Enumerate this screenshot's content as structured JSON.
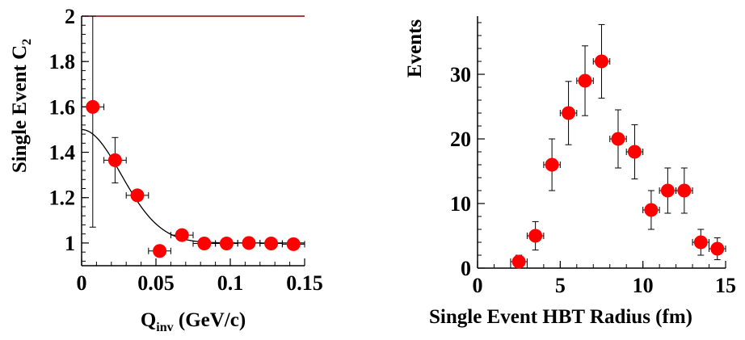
{
  "chart_data": [
    {
      "type": "scatter",
      "title": "",
      "xlabel": "Q",
      "xlabel_sub": "inv",
      "xlabel_unit": " (GeV/c)",
      "ylabel": "Single Event C",
      "ylabel_sub": "2",
      "xlim": [
        0,
        0.15
      ],
      "ylim": [
        0.9,
        2.0
      ],
      "xticks": [
        0,
        0.05,
        0.1,
        0.15
      ],
      "xtick_labels": [
        "0",
        "0.05",
        "0.1",
        "0.15"
      ],
      "yticks": [
        1,
        1.2,
        1.4,
        1.6,
        1.8,
        2
      ],
      "ytick_labels": [
        "1",
        "1.2",
        "1.4",
        "1.6",
        "1.8",
        "2"
      ],
      "grid": false,
      "legend": "none",
      "marker_color": "#ff0000",
      "points": [
        {
          "x": 0.0075,
          "y": 1.6,
          "xerr": 0.0075,
          "yerr_lo": 0.53,
          "yerr_hi": 0.42
        },
        {
          "x": 0.0225,
          "y": 1.365,
          "xerr": 0.0075,
          "yerr_lo": 0.1,
          "yerr_hi": 0.1
        },
        {
          "x": 0.0375,
          "y": 1.21,
          "xerr": 0.0075,
          "yerr_lo": 0.02,
          "yerr_hi": 0.02
        },
        {
          "x": 0.0525,
          "y": 0.965,
          "xerr": 0.0075,
          "yerr_lo": 0.025,
          "yerr_hi": 0.025
        },
        {
          "x": 0.0675,
          "y": 1.035,
          "xerr": 0.0075,
          "yerr_lo": 0.01,
          "yerr_hi": 0.01
        },
        {
          "x": 0.0825,
          "y": 0.998,
          "xerr": 0.0075,
          "yerr_lo": 0.01,
          "yerr_hi": 0.01
        },
        {
          "x": 0.0975,
          "y": 0.998,
          "xerr": 0.0075,
          "yerr_lo": 0.01,
          "yerr_hi": 0.01
        },
        {
          "x": 0.1125,
          "y": 1.0,
          "xerr": 0.0075,
          "yerr_lo": 0.01,
          "yerr_hi": 0.01
        },
        {
          "x": 0.1275,
          "y": 0.998,
          "xerr": 0.0075,
          "yerr_lo": 0.01,
          "yerr_hi": 0.01
        },
        {
          "x": 0.1425,
          "y": 0.995,
          "xerr": 0.0075,
          "yerr_lo": 0.01,
          "yerr_hi": 0.01
        }
      ],
      "fit_curve": {
        "type": "gaussian",
        "baseline": 1.0,
        "amplitude": 0.5,
        "sigma": 0.0265,
        "color": "#000000"
      }
    },
    {
      "type": "scatter",
      "title": "",
      "xlabel": "Single Event HBT Radius (fm)",
      "ylabel": "Events",
      "xlim": [
        0,
        15
      ],
      "ylim": [
        0,
        39
      ],
      "xticks": [
        0,
        5,
        10,
        15
      ],
      "xtick_labels": [
        "0",
        "5",
        "10",
        "15"
      ],
      "yticks": [
        0,
        10,
        20,
        30
      ],
      "ytick_labels": [
        "0",
        "10",
        "20",
        "30"
      ],
      "grid": false,
      "legend": "none",
      "marker_color": "#ff0000",
      "points": [
        {
          "x": 2.5,
          "y": 1,
          "xerr": 0.5,
          "yerr_lo": 1.0,
          "yerr_hi": 1.0
        },
        {
          "x": 3.5,
          "y": 5,
          "xerr": 0.5,
          "yerr_lo": 2.2,
          "yerr_hi": 2.2
        },
        {
          "x": 4.5,
          "y": 16,
          "xerr": 0.5,
          "yerr_lo": 4.0,
          "yerr_hi": 4.0
        },
        {
          "x": 5.5,
          "y": 24,
          "xerr": 0.5,
          "yerr_lo": 4.9,
          "yerr_hi": 4.9
        },
        {
          "x": 6.5,
          "y": 29,
          "xerr": 0.5,
          "yerr_lo": 5.4,
          "yerr_hi": 5.4
        },
        {
          "x": 7.5,
          "y": 32,
          "xerr": 0.5,
          "yerr_lo": 5.7,
          "yerr_hi": 5.7
        },
        {
          "x": 8.5,
          "y": 20,
          "xerr": 0.5,
          "yerr_lo": 4.5,
          "yerr_hi": 4.5
        },
        {
          "x": 9.5,
          "y": 18,
          "xerr": 0.5,
          "yerr_lo": 4.2,
          "yerr_hi": 4.2
        },
        {
          "x": 10.5,
          "y": 9,
          "xerr": 0.5,
          "yerr_lo": 3.0,
          "yerr_hi": 3.0
        },
        {
          "x": 11.5,
          "y": 12,
          "xerr": 0.5,
          "yerr_lo": 3.5,
          "yerr_hi": 3.5
        },
        {
          "x": 12.5,
          "y": 12,
          "xerr": 0.5,
          "yerr_lo": 3.5,
          "yerr_hi": 3.5
        },
        {
          "x": 13.5,
          "y": 4,
          "xerr": 0.5,
          "yerr_lo": 2.0,
          "yerr_hi": 2.0
        },
        {
          "x": 14.5,
          "y": 3,
          "xerr": 0.5,
          "yerr_lo": 1.7,
          "yerr_hi": 1.7
        }
      ]
    }
  ]
}
